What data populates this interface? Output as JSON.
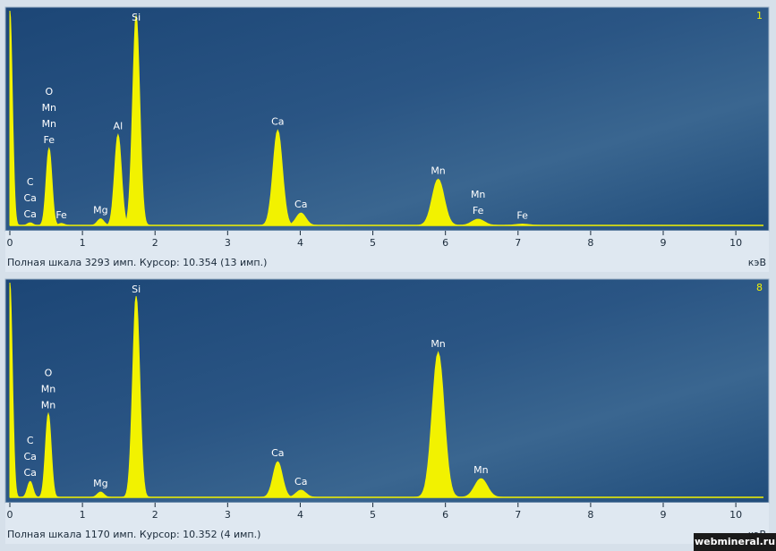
{
  "chart_data": [
    {
      "type": "spectrum",
      "panel_number": "1",
      "status": "Полная шкала 3293 имп. Курсор: 10.354  (13 имп.)",
      "x_unit": "кэВ",
      "color": "#f2f200",
      "xlim": [
        0,
        10.43
      ],
      "xticks": [
        0,
        1,
        2,
        3,
        4,
        5,
        6,
        7,
        8,
        9,
        10
      ],
      "ylim": [
        0,
        3293
      ],
      "peaks": [
        {
          "energy": 0,
          "counts": 3293,
          "labels": []
        },
        {
          "energy": 0.28,
          "counts": 40,
          "labels": [
            "C",
            "Ca",
            "Ca"
          ]
        },
        {
          "energy": 0.54,
          "counts": 1180,
          "labels": [
            "O",
            "Mn",
            "Mn",
            "Fe"
          ]
        },
        {
          "energy": 0.71,
          "counts": 30,
          "labels": [
            "Fe"
          ]
        },
        {
          "energy": 1.25,
          "counts": 100,
          "labels": [
            "Mg"
          ]
        },
        {
          "energy": 1.49,
          "counts": 1390,
          "labels": [
            "Al"
          ]
        },
        {
          "energy": 1.74,
          "counts": 3220,
          "labels": [
            "Si"
          ]
        },
        {
          "energy": 3.69,
          "counts": 1460,
          "labels": [
            "Ca"
          ]
        },
        {
          "energy": 4.01,
          "counts": 190,
          "labels": [
            "Ca"
          ]
        },
        {
          "energy": 5.9,
          "counts": 710,
          "labels": [
            "Mn"
          ]
        },
        {
          "energy": 6.45,
          "counts": 95,
          "labels": [
            "Mn",
            "Fe"
          ]
        },
        {
          "energy": 7.06,
          "counts": 20,
          "labels": [
            "Fe"
          ]
        }
      ]
    },
    {
      "type": "spectrum",
      "panel_number": "8",
      "status": "Полная шкала 1170 имп. Курсор: 10.352  (4 имп.)",
      "x_unit": "кэВ",
      "color": "#f2f200",
      "xlim": [
        0,
        10.43
      ],
      "xticks": [
        0,
        1,
        2,
        3,
        4,
        5,
        6,
        7,
        8,
        9,
        10
      ],
      "ylim": [
        0,
        1170
      ],
      "peaks": [
        {
          "energy": 0,
          "counts": 1170,
          "labels": []
        },
        {
          "energy": 0.28,
          "counts": 87,
          "labels": [
            "C",
            "Ca",
            "Ca"
          ]
        },
        {
          "energy": 0.53,
          "counts": 456,
          "labels": [
            "O",
            "Mn",
            "Mn"
          ]
        },
        {
          "energy": 1.25,
          "counts": 29,
          "labels": [
            "Mg"
          ]
        },
        {
          "energy": 1.74,
          "counts": 1096,
          "labels": [
            "Si"
          ]
        },
        {
          "energy": 3.69,
          "counts": 194,
          "labels": [
            "Ca"
          ]
        },
        {
          "energy": 4.01,
          "counts": 39,
          "labels": [
            "Ca"
          ]
        },
        {
          "energy": 5.9,
          "counts": 790,
          "labels": [
            "Mn"
          ]
        },
        {
          "energy": 6.49,
          "counts": 102,
          "labels": [
            "Mn"
          ]
        }
      ]
    }
  ],
  "watermark": "webmineral.ru"
}
